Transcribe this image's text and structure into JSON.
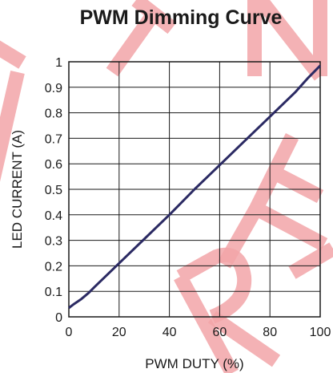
{
  "chart_data": {
    "type": "line",
    "title": "PWM Dimming Curve",
    "xlabel": "PWM DUTY (%)",
    "ylabel": "LED CURRENT (A)",
    "xlim": [
      0,
      100
    ],
    "ylim": [
      0,
      1
    ],
    "grid": true,
    "x_ticks": [
      "0",
      "20",
      "40",
      "60",
      "80",
      "100"
    ],
    "y_ticks": [
      "0",
      "0.1",
      "0.2",
      "0.3",
      "0.4",
      "0.5",
      "0.6",
      "0.7",
      "0.8",
      "0.9",
      "1"
    ],
    "series": [
      {
        "color": "#2b2a63",
        "x": [
          0,
          2,
          5,
          8,
          10,
          20,
          30,
          40,
          50,
          60,
          70,
          80,
          90,
          95,
          100
        ],
        "y": [
          0.035,
          0.05,
          0.07,
          0.095,
          0.115,
          0.21,
          0.305,
          0.4,
          0.5,
          0.595,
          0.69,
          0.785,
          0.88,
          0.935,
          0.985
        ]
      }
    ]
  },
  "watermark": {
    "text": "NOT RECOMMENDED",
    "color": "#f2a4a8"
  }
}
